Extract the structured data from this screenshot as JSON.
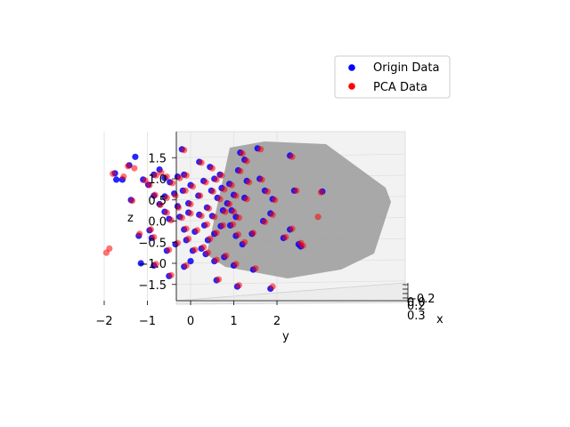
{
  "chart_data": {
    "type": "scatter",
    "projection": "3d",
    "title": "",
    "xlabel": "x",
    "ylabel": "y",
    "zlabel": "z",
    "y_ticks": [
      "−2",
      "−1",
      "0",
      "1",
      "2"
    ],
    "z_ticks": [
      "1.5",
      "1.0",
      "0.5",
      "0.0",
      "−0.5",
      "−1.0",
      "−1.5"
    ],
    "x_ticks": [
      "−0.2",
      "0.0",
      "0.2",
      "0.3"
    ],
    "ylim": [
      -2.4,
      2.8
    ],
    "zlim": [
      -1.9,
      1.95
    ],
    "grid": true,
    "legend_position": "upper-right",
    "plane_color": "#a0a0a0",
    "series": [
      {
        "name": "Origin Data",
        "color": "#0000ff",
        "points": [
          [
            -1.75,
            1.13
          ],
          [
            -1.72,
            0.98
          ],
          [
            -1.58,
            0.98
          ],
          [
            -1.42,
            1.32
          ],
          [
            -1.28,
            1.52
          ],
          [
            -1.1,
            0.98
          ],
          [
            -0.98,
            0.86
          ],
          [
            -0.85,
            0.6
          ],
          [
            -0.72,
            0.4
          ],
          [
            -1.2,
            -0.35
          ],
          [
            -1.15,
            -1.0
          ],
          [
            -0.95,
            -0.22
          ],
          [
            -0.72,
            1.22
          ],
          [
            -0.6,
            1.02
          ],
          [
            -0.48,
            0.92
          ],
          [
            -0.3,
            1.05
          ],
          [
            -0.38,
            0.65
          ],
          [
            -0.18,
            0.72
          ],
          [
            -0.6,
            0.22
          ],
          [
            -0.5,
            0.05
          ],
          [
            -0.3,
            0.35
          ],
          [
            -0.05,
            0.42
          ],
          [
            0.18,
            0.6
          ],
          [
            0.3,
            0.95
          ],
          [
            0.45,
            1.28
          ],
          [
            0.55,
            1.0
          ],
          [
            0.72,
            0.78
          ],
          [
            0.62,
            0.55
          ],
          [
            0.85,
            0.42
          ],
          [
            0.95,
            0.25
          ],
          [
            1.05,
            0.1
          ],
          [
            1.1,
            1.2
          ],
          [
            1.3,
            0.95
          ],
          [
            1.25,
            1.45
          ],
          [
            1.55,
            1.72
          ],
          [
            1.6,
            1.0
          ],
          [
            1.72,
            0.72
          ],
          [
            1.9,
            0.52
          ],
          [
            1.85,
            0.18
          ],
          [
            1.68,
            0.0
          ],
          [
            1.42,
            -0.3
          ],
          [
            1.2,
            -0.55
          ],
          [
            1.05,
            -0.35
          ],
          [
            0.92,
            -0.1
          ],
          [
            0.7,
            -0.12
          ],
          [
            0.55,
            -0.3
          ],
          [
            0.4,
            -0.45
          ],
          [
            0.25,
            -0.65
          ],
          [
            0.05,
            -0.7
          ],
          [
            -0.1,
            -0.45
          ],
          [
            -0.35,
            -0.55
          ],
          [
            -0.55,
            -0.7
          ],
          [
            -0.15,
            -0.2
          ],
          [
            0.1,
            -0.25
          ],
          [
            0.32,
            -0.1
          ],
          [
            0.5,
            0.12
          ],
          [
            0.75,
            0.25
          ],
          [
            -0.05,
            0.2
          ],
          [
            -0.25,
            0.1
          ],
          [
            -0.85,
            1.1
          ],
          [
            -0.2,
            1.7
          ],
          [
            0.2,
            1.4
          ],
          [
            0.48,
            0.72
          ],
          [
            1.0,
            0.62
          ],
          [
            2.4,
            0.72
          ],
          [
            2.3,
            1.55
          ],
          [
            2.3,
            -0.2
          ],
          [
            2.15,
            -0.4
          ],
          [
            2.55,
            -0.6
          ],
          [
            1.85,
            -1.6
          ],
          [
            1.45,
            -1.15
          ],
          [
            1.0,
            -1.05
          ],
          [
            0.78,
            -0.85
          ],
          [
            0.55,
            -0.95
          ],
          [
            0.35,
            -0.78
          ],
          [
            -0.15,
            -1.08
          ],
          [
            -0.5,
            -1.3
          ],
          [
            -0.85,
            -1.05
          ],
          [
            0.6,
            -1.4
          ],
          [
            1.08,
            -1.55
          ],
          [
            3.05,
            0.7
          ],
          [
            2.5,
            -0.55
          ],
          [
            0.0,
            0.85
          ],
          [
            -1.38,
            0.5
          ],
          [
            -0.6,
            0.58
          ],
          [
            0.38,
            0.32
          ],
          [
            0.9,
            0.88
          ],
          [
            -0.15,
            1.1
          ],
          [
            0.2,
            0.15
          ],
          [
            1.25,
            0.55
          ],
          [
            0.0,
            -0.95
          ],
          [
            -0.9,
            -0.4
          ],
          [
            0.68,
            1.1
          ],
          [
            1.15,
            1.62
          ]
        ]
      },
      {
        "name": "PCA Data",
        "color": "#ff0000",
        "points": [
          [
            -1.8,
            1.12
          ],
          [
            -1.55,
            1.05
          ],
          [
            -1.45,
            1.3
          ],
          [
            -1.3,
            1.25
          ],
          [
            -1.05,
            0.96
          ],
          [
            -0.95,
            0.85
          ],
          [
            -0.82,
            0.62
          ],
          [
            -0.7,
            0.38
          ],
          [
            -1.18,
            -0.3
          ],
          [
            -1.95,
            -0.75
          ],
          [
            -1.88,
            -0.65
          ],
          [
            -0.92,
            -0.2
          ],
          [
            -0.68,
            1.15
          ],
          [
            -0.55,
            1.05
          ],
          [
            -0.42,
            0.9
          ],
          [
            -0.25,
            1.02
          ],
          [
            -0.35,
            0.6
          ],
          [
            -0.12,
            0.72
          ],
          [
            -0.55,
            0.2
          ],
          [
            -0.45,
            0.02
          ],
          [
            -0.28,
            0.32
          ],
          [
            0.0,
            0.4
          ],
          [
            0.22,
            0.6
          ],
          [
            0.35,
            0.92
          ],
          [
            0.5,
            1.25
          ],
          [
            0.6,
            0.98
          ],
          [
            0.78,
            0.75
          ],
          [
            0.68,
            0.52
          ],
          [
            0.9,
            0.4
          ],
          [
            1.0,
            0.22
          ],
          [
            1.12,
            0.08
          ],
          [
            1.15,
            1.18
          ],
          [
            1.35,
            0.92
          ],
          [
            1.3,
            1.42
          ],
          [
            1.62,
            1.7
          ],
          [
            1.65,
            0.98
          ],
          [
            1.78,
            0.7
          ],
          [
            1.95,
            0.5
          ],
          [
            1.9,
            0.15
          ],
          [
            1.72,
            -0.02
          ],
          [
            1.45,
            -0.28
          ],
          [
            1.25,
            -0.5
          ],
          [
            1.1,
            -0.32
          ],
          [
            0.98,
            -0.08
          ],
          [
            0.75,
            -0.1
          ],
          [
            0.6,
            -0.28
          ],
          [
            0.45,
            -0.42
          ],
          [
            0.3,
            -0.62
          ],
          [
            0.1,
            -0.68
          ],
          [
            -0.05,
            -0.42
          ],
          [
            -0.3,
            -0.52
          ],
          [
            -0.5,
            -0.68
          ],
          [
            -0.1,
            -0.18
          ],
          [
            0.15,
            -0.22
          ],
          [
            0.38,
            -0.08
          ],
          [
            0.55,
            0.1
          ],
          [
            0.8,
            0.22
          ],
          [
            0.0,
            0.18
          ],
          [
            -0.2,
            0.08
          ],
          [
            -0.8,
            1.08
          ],
          [
            -0.15,
            1.68
          ],
          [
            0.25,
            1.38
          ],
          [
            0.52,
            0.7
          ],
          [
            1.05,
            0.6
          ],
          [
            2.45,
            0.72
          ],
          [
            2.35,
            1.52
          ],
          [
            2.35,
            -0.18
          ],
          [
            2.2,
            -0.38
          ],
          [
            2.6,
            -0.58
          ],
          [
            1.9,
            -1.55
          ],
          [
            1.5,
            -1.12
          ],
          [
            1.05,
            -1.02
          ],
          [
            0.82,
            -0.82
          ],
          [
            0.6,
            -0.92
          ],
          [
            0.4,
            -0.75
          ],
          [
            -0.1,
            -1.05
          ],
          [
            -0.45,
            -1.28
          ],
          [
            -0.8,
            -1.02
          ],
          [
            0.65,
            -1.38
          ],
          [
            1.12,
            -1.52
          ],
          [
            3.02,
            0.68
          ],
          [
            2.55,
            -0.52
          ],
          [
            0.05,
            0.82
          ],
          [
            -1.35,
            0.48
          ],
          [
            -0.55,
            0.55
          ],
          [
            0.42,
            0.3
          ],
          [
            0.95,
            0.85
          ],
          [
            -0.1,
            1.08
          ],
          [
            0.25,
            0.12
          ],
          [
            1.3,
            0.52
          ],
          [
            2.95,
            0.1
          ],
          [
            -0.85,
            -0.38
          ],
          [
            0.72,
            1.08
          ],
          [
            1.2,
            1.6
          ]
        ]
      }
    ]
  }
}
